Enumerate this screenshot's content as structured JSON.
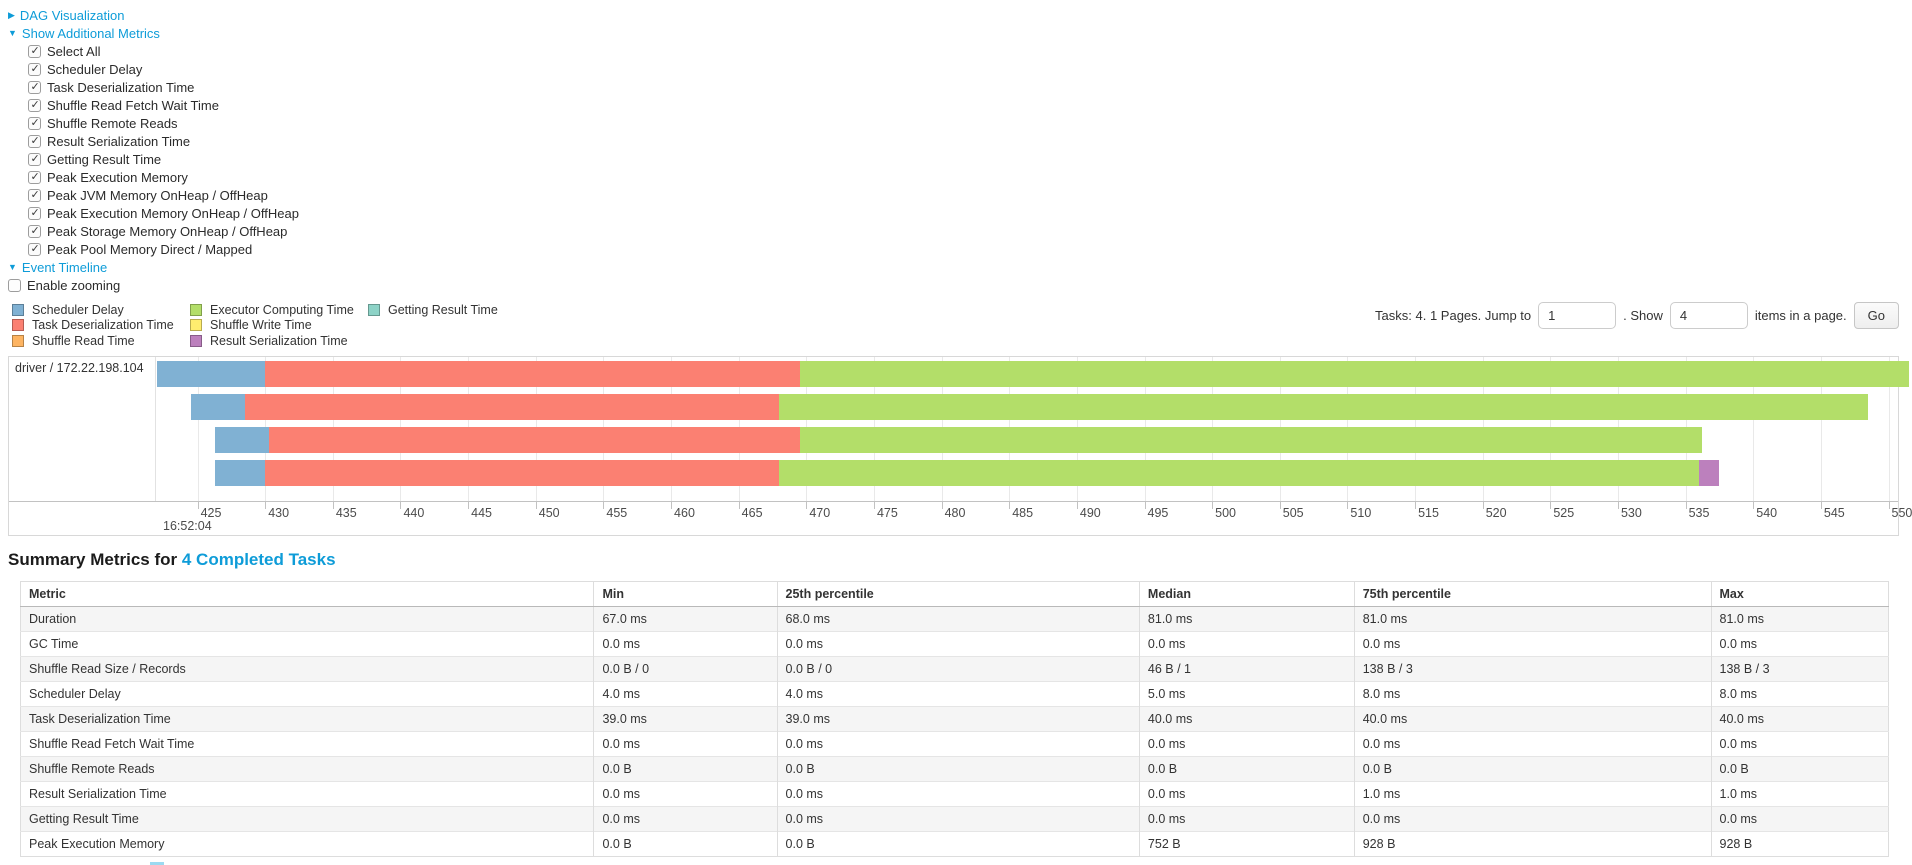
{
  "colors": {
    "link": "#0e9cd8",
    "row_stripe": "#f5f5f5",
    "timeline_palette": {
      "scheduler_delay": "#80B1D3",
      "task_deserialization": "#FB8072",
      "shuffle_read": "#FDB462",
      "executor_computing": "#B3DE69",
      "shuffle_write": "#FFED6F",
      "result_serialization": "#BC80BD",
      "getting_result": "#8DD3C7"
    }
  },
  "icons": {
    "collapsed_arrow": "▶",
    "expanded_arrow": "▼"
  },
  "controls": {
    "dag_toggle": {
      "label": "DAG Visualization",
      "state": "collapsed"
    },
    "metrics_toggle": {
      "label": "Show Additional Metrics",
      "state": "expanded"
    },
    "metric_checkboxes": [
      {
        "label": "Select All",
        "checked": true
      },
      {
        "label": "Scheduler Delay",
        "checked": true
      },
      {
        "label": "Task Deserialization Time",
        "checked": true
      },
      {
        "label": "Shuffle Read Fetch Wait Time",
        "checked": true
      },
      {
        "label": "Shuffle Remote Reads",
        "checked": true
      },
      {
        "label": "Result Serialization Time",
        "checked": true
      },
      {
        "label": "Getting Result Time",
        "checked": true
      },
      {
        "label": "Peak Execution Memory",
        "checked": true
      },
      {
        "label": "Peak JVM Memory OnHeap / OffHeap",
        "checked": true
      },
      {
        "label": "Peak Execution Memory OnHeap / OffHeap",
        "checked": true
      },
      {
        "label": "Peak Storage Memory OnHeap / OffHeap",
        "checked": true
      },
      {
        "label": "Peak Pool Memory Direct / Mapped",
        "checked": true
      }
    ],
    "timeline_toggle": {
      "label": "Event Timeline",
      "state": "expanded"
    },
    "enable_zooming": {
      "label": "Enable zooming",
      "checked": false
    }
  },
  "legend": {
    "items": [
      {
        "label": "Scheduler Delay",
        "color_key": "scheduler_delay"
      },
      {
        "label": "Task Deserialization Time",
        "color_key": "task_deserialization"
      },
      {
        "label": "Shuffle Read Time",
        "color_key": "shuffle_read"
      },
      {
        "label": "Executor Computing Time",
        "color_key": "executor_computing"
      },
      {
        "label": "Shuffle Write Time",
        "color_key": "shuffle_write"
      },
      {
        "label": "Result Serialization Time",
        "color_key": "result_serialization"
      },
      {
        "label": "Getting Result Time",
        "color_key": "getting_result"
      }
    ]
  },
  "pagination": {
    "tasks_text": "Tasks: 4. 1 Pages. Jump to",
    "jump_value": "1",
    "mid_text": ". Show",
    "show_value": "4",
    "suffix_text": "items in a page.",
    "go_label": "Go"
  },
  "timeline": {
    "row_label": "driver / 172.22.198.104",
    "axis": {
      "min": 422,
      "max": 550.7,
      "first_tick": 425,
      "last_tick": 550,
      "step": 5,
      "time_label": "16:52:04"
    },
    "tasks": [
      {
        "start": 422.0,
        "segments": [
          {
            "type": "scheduler_delay",
            "ms": 8.0
          },
          {
            "type": "task_deserialization",
            "ms": 39.5
          },
          {
            "type": "executor_computing",
            "ms": 82.0
          }
        ]
      },
      {
        "start": 424.5,
        "segments": [
          {
            "type": "scheduler_delay",
            "ms": 4.0
          },
          {
            "type": "task_deserialization",
            "ms": 39.5
          },
          {
            "type": "executor_computing",
            "ms": 80.5
          }
        ]
      },
      {
        "start": 426.3,
        "segments": [
          {
            "type": "scheduler_delay",
            "ms": 4.0
          },
          {
            "type": "task_deserialization",
            "ms": 39.2
          },
          {
            "type": "executor_computing",
            "ms": 66.7
          }
        ]
      },
      {
        "start": 426.3,
        "segments": [
          {
            "type": "scheduler_delay",
            "ms": 3.7
          },
          {
            "type": "task_deserialization",
            "ms": 38.0
          },
          {
            "type": "executor_computing",
            "ms": 68.0
          },
          {
            "type": "result_serialization",
            "ms": 1.5
          }
        ]
      }
    ]
  },
  "summary": {
    "title_prefix": "Summary Metrics for",
    "title_link": "4 Completed Tasks",
    "columns": [
      "Metric",
      "Min",
      "25th percentile",
      "Median",
      "75th percentile",
      "Max"
    ],
    "rows": [
      {
        "metric": "Duration",
        "values": [
          "67.0 ms",
          "68.0 ms",
          "81.0 ms",
          "81.0 ms",
          "81.0 ms"
        ]
      },
      {
        "metric": "GC Time",
        "values": [
          "0.0 ms",
          "0.0 ms",
          "0.0 ms",
          "0.0 ms",
          "0.0 ms"
        ]
      },
      {
        "metric": "Shuffle Read Size / Records",
        "values": [
          "0.0 B / 0",
          "0.0 B / 0",
          "46 B / 1",
          "138 B / 3",
          "138 B / 3"
        ]
      },
      {
        "metric": "Scheduler Delay",
        "values": [
          "4.0 ms",
          "4.0 ms",
          "5.0 ms",
          "8.0 ms",
          "8.0 ms"
        ]
      },
      {
        "metric": "Task Deserialization Time",
        "values": [
          "39.0 ms",
          "39.0 ms",
          "40.0 ms",
          "40.0 ms",
          "40.0 ms"
        ]
      },
      {
        "metric": "Shuffle Read Fetch Wait Time",
        "values": [
          "0.0 ms",
          "0.0 ms",
          "0.0 ms",
          "0.0 ms",
          "0.0 ms"
        ]
      },
      {
        "metric": "Shuffle Remote Reads",
        "values": [
          "0.0 B",
          "0.0 B",
          "0.0 B",
          "0.0 B",
          "0.0 B"
        ]
      },
      {
        "metric": "Result Serialization Time",
        "values": [
          "0.0 ms",
          "0.0 ms",
          "0.0 ms",
          "1.0 ms",
          "1.0 ms"
        ]
      },
      {
        "metric": "Getting Result Time",
        "values": [
          "0.0 ms",
          "0.0 ms",
          "0.0 ms",
          "0.0 ms",
          "0.0 ms"
        ]
      },
      {
        "metric": "Peak Execution Memory",
        "values": [
          "0.0 B",
          "0.0 B",
          "752 B",
          "928 B",
          "928 B"
        ]
      }
    ]
  }
}
